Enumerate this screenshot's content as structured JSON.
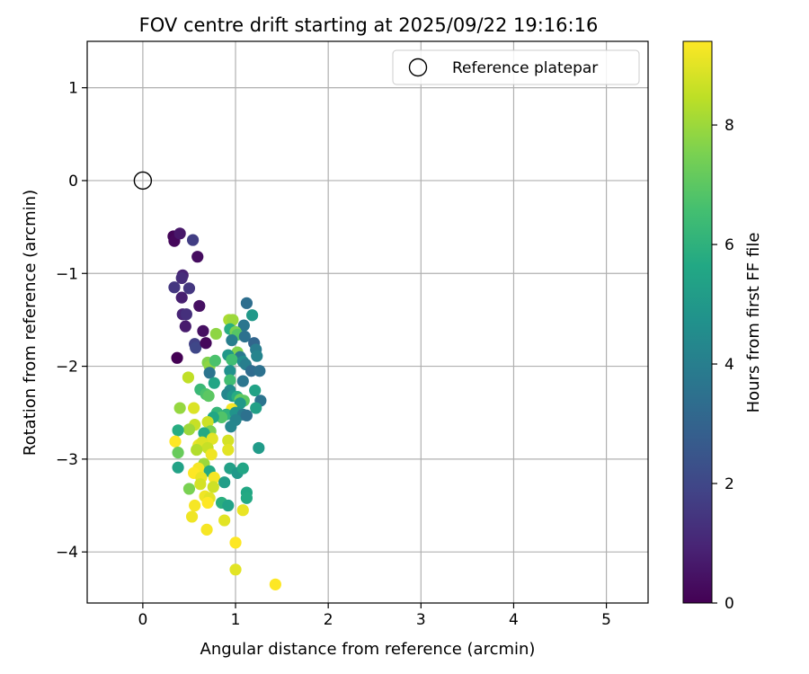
{
  "chart_data": {
    "type": "scatter",
    "title": "FOV centre drift starting at 2025/09/22 19:16:16",
    "xlabel": "Angular distance from reference (arcmin)",
    "ylabel": "Rotation from reference (arcmin)",
    "xlim": [
      -0.6,
      5.45
    ],
    "ylim": [
      -4.55,
      1.5
    ],
    "xticks": [
      0,
      1,
      2,
      3,
      4,
      5
    ],
    "yticks": [
      -4,
      -3,
      -2,
      -1,
      0,
      1
    ],
    "grid": true,
    "legend_position": "top-right",
    "legend": {
      "label": "Reference platepar"
    },
    "reference_point": {
      "x": 0,
      "y": 0
    },
    "colorbar": {
      "label": "Hours from first FF file",
      "colormap": "viridis",
      "range": [
        0,
        9.4
      ],
      "ticks": [
        0,
        2,
        4,
        6,
        8
      ]
    },
    "series": [
      {
        "color_by": "hours",
        "points": [
          [
            0.33,
            -0.6,
            0.1
          ],
          [
            0.34,
            -0.65,
            0.2
          ],
          [
            0.4,
            -0.57,
            0.6
          ],
          [
            0.54,
            -0.64,
            1.7
          ],
          [
            0.59,
            -0.82,
            0.3
          ],
          [
            0.34,
            -1.15,
            1.5
          ],
          [
            0.43,
            -1.02,
            0.9
          ],
          [
            0.42,
            -1.05,
            1.2
          ],
          [
            0.5,
            -1.16,
            1.5
          ],
          [
            0.42,
            -1.26,
            0.8
          ],
          [
            0.61,
            -1.35,
            0.4
          ],
          [
            0.43,
            -1.44,
            1.0
          ],
          [
            0.47,
            -1.44,
            1.3
          ],
          [
            0.46,
            -1.57,
            0.7
          ],
          [
            0.56,
            -1.76,
            1.8
          ],
          [
            0.57,
            -1.8,
            2.0
          ],
          [
            0.65,
            -1.62,
            0.4
          ],
          [
            0.68,
            -1.75,
            0.2
          ],
          [
            0.37,
            -1.91,
            0.0
          ],
          [
            1.12,
            -1.32,
            3.4
          ],
          [
            1.18,
            -1.45,
            5.0
          ],
          [
            1.09,
            -1.56,
            3.7
          ],
          [
            0.93,
            -1.5,
            8.2
          ],
          [
            0.97,
            -1.5,
            8.0
          ],
          [
            0.94,
            -1.6,
            5.8
          ],
          [
            1.0,
            -1.63,
            7.5
          ],
          [
            1.02,
            -1.66,
            6.9
          ],
          [
            0.96,
            -1.72,
            4.0
          ],
          [
            1.1,
            -1.68,
            3.5
          ],
          [
            1.2,
            -1.75,
            3.1
          ],
          [
            0.79,
            -1.65,
            7.8
          ],
          [
            1.02,
            -1.85,
            7.6
          ],
          [
            1.22,
            -1.82,
            3.9
          ],
          [
            1.23,
            -1.89,
            4.2
          ],
          [
            1.05,
            -1.9,
            3.8
          ],
          [
            0.92,
            -1.88,
            5.0
          ],
          [
            0.96,
            -1.93,
            6.5
          ],
          [
            1.08,
            -1.95,
            4.5
          ],
          [
            1.11,
            -1.98,
            4.0
          ],
          [
            0.7,
            -1.96,
            7.6
          ],
          [
            0.72,
            -2.0,
            7.8
          ],
          [
            0.78,
            -1.94,
            6.7
          ],
          [
            0.72,
            -2.07,
            3.6
          ],
          [
            0.94,
            -2.05,
            4.7
          ],
          [
            1.17,
            -2.05,
            3.3
          ],
          [
            1.26,
            -2.05,
            3.5
          ],
          [
            0.49,
            -2.12,
            8.5
          ],
          [
            0.77,
            -2.18,
            5.5
          ],
          [
            0.94,
            -2.15,
            6.5
          ],
          [
            1.08,
            -2.16,
            3.7
          ],
          [
            0.62,
            -2.25,
            6.3
          ],
          [
            0.68,
            -2.3,
            6.7
          ],
          [
            0.71,
            -2.32,
            7.0
          ],
          [
            0.94,
            -2.26,
            4.5
          ],
          [
            1.21,
            -2.26,
            5.4
          ],
          [
            0.91,
            -2.3,
            4.3
          ],
          [
            0.97,
            -2.32,
            4.9
          ],
          [
            1.02,
            -2.33,
            5.8
          ],
          [
            1.05,
            -2.36,
            7.2
          ],
          [
            1.09,
            -2.37,
            7.0
          ],
          [
            1.27,
            -2.37,
            3.6
          ],
          [
            1.05,
            -2.4,
            5.0
          ],
          [
            0.4,
            -2.45,
            7.9
          ],
          [
            0.55,
            -2.45,
            8.9
          ],
          [
            0.96,
            -2.46,
            9.3
          ],
          [
            1.22,
            -2.45,
            5.3
          ],
          [
            0.8,
            -2.5,
            6.2
          ],
          [
            0.9,
            -2.52,
            6.0
          ],
          [
            1.0,
            -2.5,
            4.8
          ],
          [
            1.08,
            -2.52,
            3.9
          ],
          [
            1.12,
            -2.53,
            3.5
          ],
          [
            0.85,
            -2.55,
            6.8
          ],
          [
            0.76,
            -2.55,
            5.6
          ],
          [
            1.0,
            -2.58,
            4.2
          ],
          [
            0.56,
            -2.63,
            8.6
          ],
          [
            0.5,
            -2.68,
            8.0
          ],
          [
            0.7,
            -2.6,
            8.7
          ],
          [
            0.73,
            -2.7,
            7.5
          ],
          [
            0.95,
            -2.65,
            4.3
          ],
          [
            0.38,
            -2.69,
            5.8
          ],
          [
            0.66,
            -2.72,
            5.7
          ],
          [
            0.75,
            -2.78,
            9.0
          ],
          [
            0.35,
            -2.81,
            9.4
          ],
          [
            0.6,
            -2.85,
            9.1
          ],
          [
            0.64,
            -2.82,
            8.9
          ],
          [
            0.7,
            -2.88,
            8.6
          ],
          [
            0.92,
            -2.8,
            8.8
          ],
          [
            1.25,
            -2.88,
            5.1
          ],
          [
            0.38,
            -2.93,
            7.2
          ],
          [
            0.58,
            -2.9,
            8.3
          ],
          [
            0.74,
            -2.95,
            9.2
          ],
          [
            0.92,
            -2.9,
            9.0
          ],
          [
            0.66,
            -3.05,
            8.0
          ],
          [
            0.6,
            -3.1,
            9.3
          ],
          [
            0.38,
            -3.09,
            5.4
          ],
          [
            0.72,
            -3.13,
            5.7
          ],
          [
            0.94,
            -3.1,
            5.3
          ],
          [
            1.02,
            -3.15,
            5.0
          ],
          [
            1.08,
            -3.1,
            5.5
          ],
          [
            0.55,
            -3.15,
            9.4
          ],
          [
            0.63,
            -3.2,
            9.1
          ],
          [
            0.77,
            -3.2,
            9.3
          ],
          [
            0.88,
            -3.25,
            5.2
          ],
          [
            0.62,
            -3.27,
            8.8
          ],
          [
            0.5,
            -3.32,
            7.5
          ],
          [
            0.76,
            -3.3,
            8.7
          ],
          [
            1.12,
            -3.36,
            5.6
          ],
          [
            0.67,
            -3.4,
            9.2
          ],
          [
            0.72,
            -3.42,
            9.0
          ],
          [
            0.85,
            -3.47,
            5.9
          ],
          [
            0.92,
            -3.5,
            5.4
          ],
          [
            1.12,
            -3.42,
            5.7
          ],
          [
            0.56,
            -3.5,
            9.3
          ],
          [
            0.7,
            -3.47,
            9.4
          ],
          [
            1.08,
            -3.55,
            9.1
          ],
          [
            0.53,
            -3.62,
            9.2
          ],
          [
            0.88,
            -3.66,
            9.0
          ],
          [
            0.69,
            -3.76,
            9.3
          ],
          [
            1.0,
            -3.9,
            9.4
          ],
          [
            1.0,
            -4.19,
            9.0
          ],
          [
            1.43,
            -4.35,
            9.4
          ]
        ]
      }
    ]
  }
}
